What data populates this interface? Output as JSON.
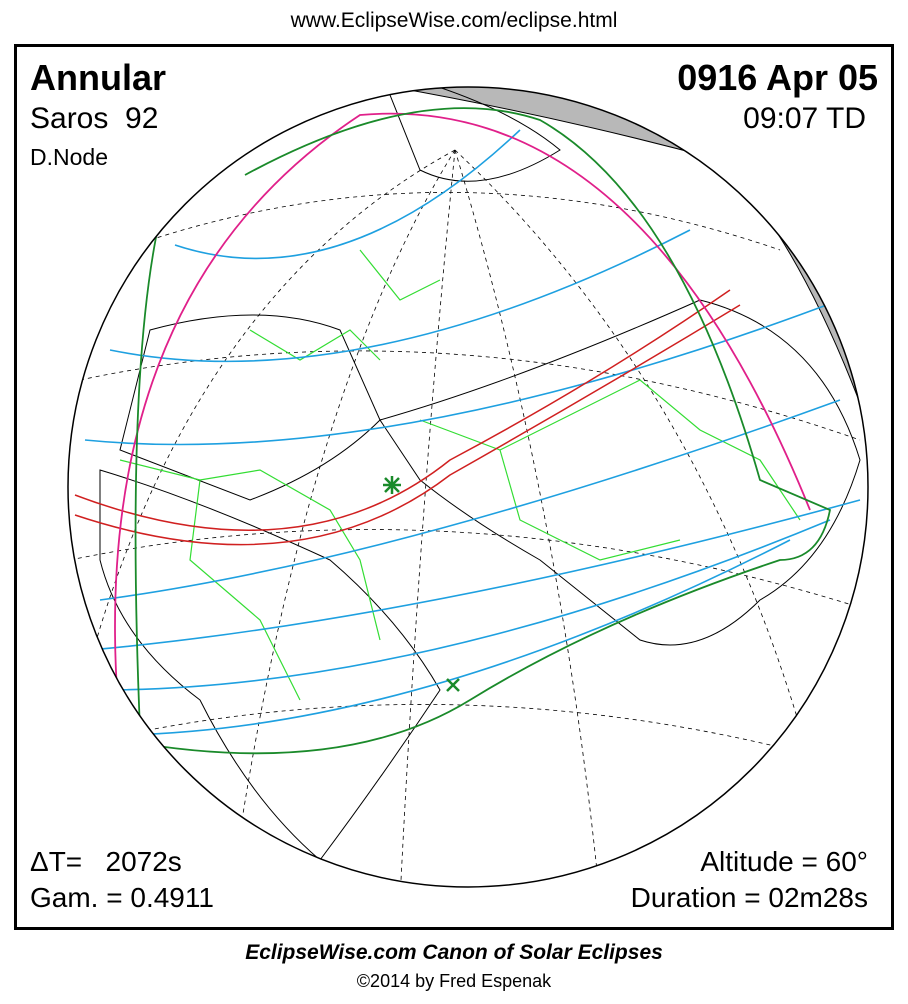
{
  "header": {
    "url": "www.EclipseWise.com/eclipse.html"
  },
  "info": {
    "type": "Annular",
    "date": "0916 Apr 05",
    "saros": "Saros  92",
    "time": "09:07 TD",
    "node": "D.Node",
    "delta_t": "ΔT=   2072s",
    "gamma": "Gam. = 0.4911",
    "altitude": "Altitude = 60°",
    "duration": "Duration = 02m28s"
  },
  "footer": {
    "title": "EclipseWise.com Canon of Solar Eclipses",
    "copyright": "©2014 by Fred Espenak"
  }
}
